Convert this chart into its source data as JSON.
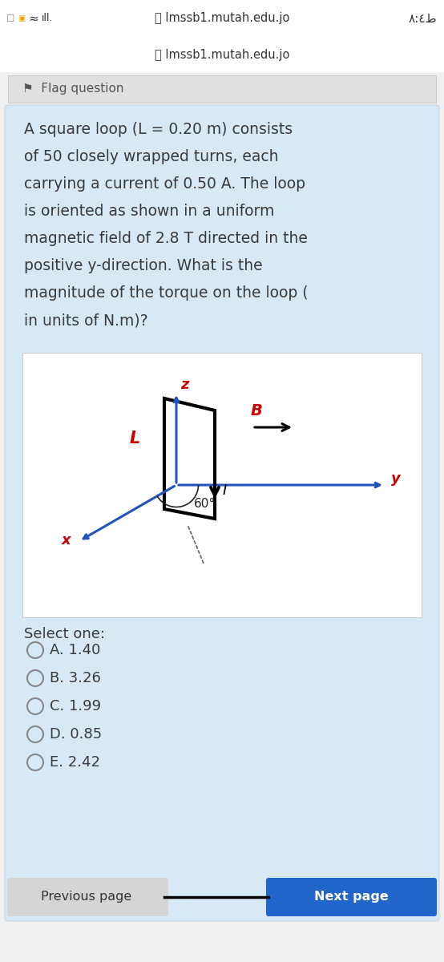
{
  "title": "lmssb1.mutah.edu.jo",
  "time_display": "٨:٤ط",
  "flag_text": "Flag question",
  "question_lines": [
    "A square loop (L = 0.20 m) consists",
    "of 50 closely wrapped turns, each",
    "carrying a current of 0.50 A. The loop",
    "is oriented as shown in a uniform",
    "magnetic field of 2.8 T directed in the",
    "positive y-direction. What is the",
    "magnitude of the torque on the loop (",
    "in units of N.m)?"
  ],
  "select_one": "Select one:",
  "options": [
    "A. 1.40",
    "B. 3.26",
    "C. 1.99",
    "D. 0.85",
    "E. 2.42"
  ],
  "page_bg": "#f0f0f0",
  "card_bg": "#d6e9f5",
  "diagram_bg": "#ffffff",
  "flag_bg": "#e0e0e0",
  "text_color": "#3a3a3a",
  "red_color": "#cc0000",
  "blue_color": "#2255bb",
  "black_color": "#111111",
  "prev_button_color": "#d5d5d5",
  "next_button_color": "#2266cc",
  "angle_label": "60°",
  "axis_x": "x",
  "axis_y": "y",
  "axis_z": "z",
  "label_B": "B",
  "label_L": "L",
  "label_I": "I",
  "prev_text": "Previous page",
  "next_text": "Next page",
  "lock_symbol": "🔒"
}
